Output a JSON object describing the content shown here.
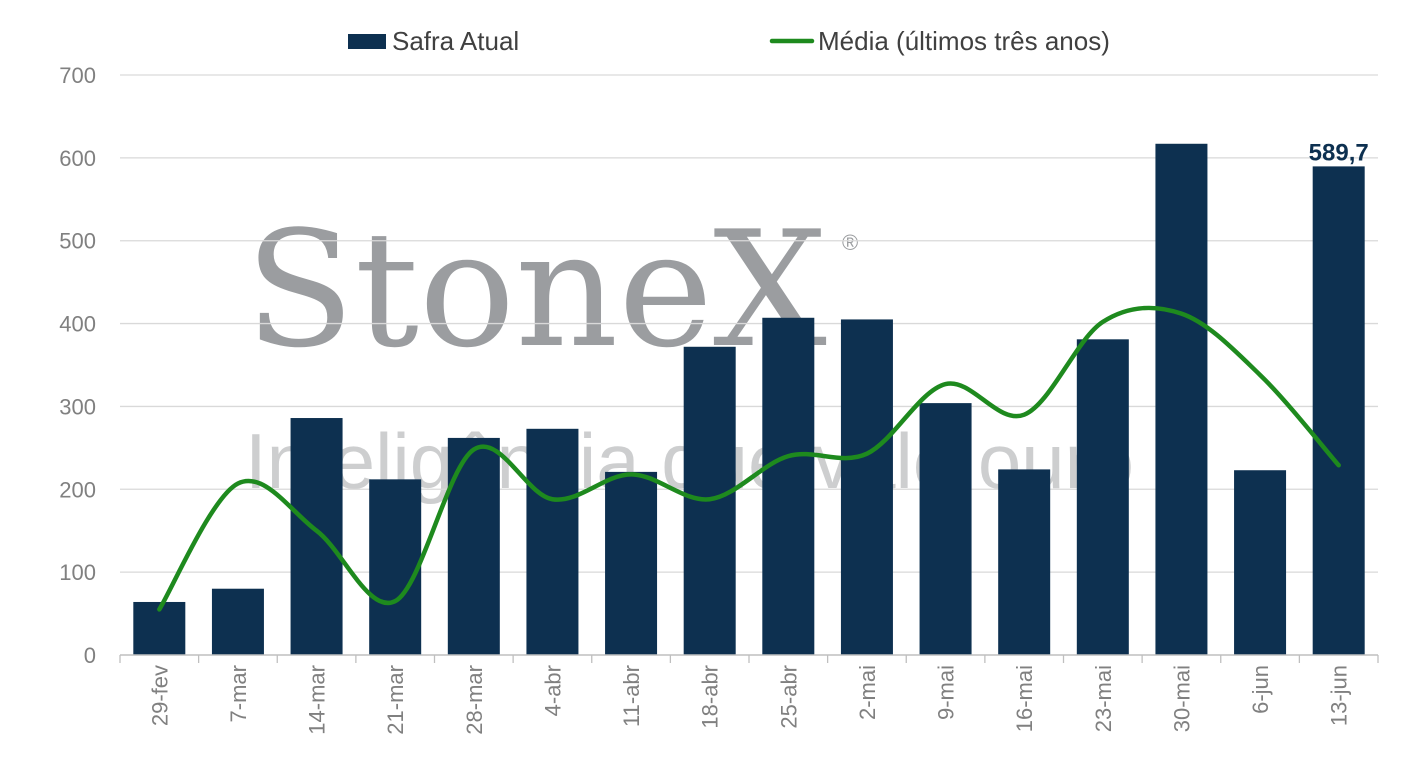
{
  "watermark": {
    "brand": "StoneX",
    "registered": "®",
    "tagline": "Inteligência que vale ouro"
  },
  "colors": {
    "bar": "#0d3050",
    "line": "#1e8a1e",
    "grid": "#d9d9d9",
    "axis": "#bfbfbf",
    "tick": "#808080"
  },
  "chart_data": {
    "type": "bar",
    "title": "",
    "xlabel": "",
    "ylabel": "",
    "ylim": [
      0,
      700
    ],
    "yticks": [
      0,
      100,
      200,
      300,
      400,
      500,
      600,
      700
    ],
    "yticklabels": [
      "0",
      "100",
      "200",
      "300",
      "400",
      "500",
      "600",
      "700"
    ],
    "grid": true,
    "legend_position": "top",
    "categories": [
      "29-fev",
      "7-mar",
      "14-mar",
      "21-mar",
      "28-mar",
      "4-abr",
      "11-abr",
      "18-abr",
      "25-abr",
      "2-mai",
      "9-mai",
      "16-mai",
      "23-mai",
      "30-mai",
      "6-jun",
      "13-jun"
    ],
    "series": [
      {
        "name": "Safra Atual",
        "type": "bar",
        "color": "#0d3050",
        "values": [
          64,
          80,
          286,
          212,
          262,
          273,
          221,
          372,
          407,
          405,
          304,
          224,
          381,
          617,
          223,
          589.7
        ]
      },
      {
        "name": "Média (últimos três anos)",
        "type": "line",
        "color": "#1e8a1e",
        "values": [
          55,
          207,
          150,
          65,
          248,
          188,
          218,
          188,
          240,
          243,
          327,
          290,
          402,
          412,
          338,
          229
        ]
      }
    ],
    "annotations": [
      {
        "category": "13-jun",
        "text": "589,7"
      }
    ]
  }
}
